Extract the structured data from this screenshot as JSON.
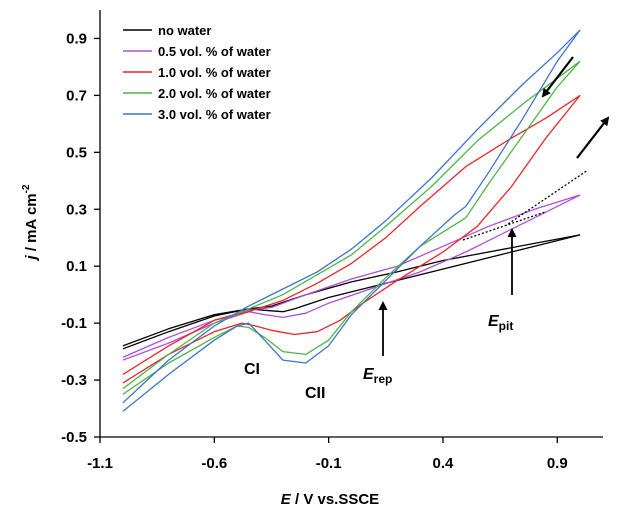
{
  "chart_data": {
    "type": "line",
    "xlabel_symbol": "E",
    "xlabel_rest": " / V vs.SSCE",
    "ylabel_symbol": "j",
    "ylabel_rest": " / mA cm",
    "ylabel_sup": "-2",
    "xlim": [
      -1.1,
      1.1
    ],
    "ylim": [
      -0.5,
      1.0
    ],
    "xticks": [
      "-1.1",
      "-0.6",
      "-0.1",
      "0.4",
      "0.9"
    ],
    "yticks": [
      "-0.5",
      "-0.3",
      "-0.1",
      "0.1",
      "0.3",
      "0.5",
      "0.7",
      "0.9"
    ],
    "grid": false,
    "legend_position": "top-left",
    "series": [
      {
        "name": "no water",
        "color": "#000000",
        "forward": {
          "x": [
            -1.0,
            -0.8,
            -0.6,
            -0.45,
            -0.38,
            -0.3,
            -0.25,
            -0.1,
            0.1,
            0.3,
            0.5,
            0.7,
            0.9,
            1.0
          ],
          "y": [
            -0.19,
            -0.13,
            -0.075,
            -0.05,
            -0.055,
            -0.06,
            -0.05,
            -0.01,
            0.03,
            0.07,
            0.11,
            0.15,
            0.19,
            0.21
          ]
        },
        "reverse": {
          "x": [
            1.0,
            0.8,
            0.6,
            0.4,
            0.2,
            0.0,
            -0.2,
            -0.35,
            -0.45,
            -0.6,
            -0.8,
            -1.0
          ],
          "y": [
            0.21,
            0.18,
            0.15,
            0.12,
            0.08,
            0.045,
            0.0,
            -0.04,
            -0.05,
            -0.07,
            -0.12,
            -0.18
          ]
        }
      },
      {
        "name": "0.5 vol. % of water",
        "color": "#b14fd6",
        "forward": {
          "x": [
            -1.0,
            -0.8,
            -0.6,
            -0.45,
            -0.38,
            -0.3,
            -0.2,
            -0.1,
            0.1,
            0.3,
            0.5,
            0.7,
            0.9,
            1.0
          ],
          "y": [
            -0.23,
            -0.17,
            -0.1,
            -0.06,
            -0.07,
            -0.08,
            -0.065,
            -0.03,
            0.025,
            0.08,
            0.15,
            0.23,
            0.31,
            0.35
          ]
        },
        "reverse": {
          "x": [
            1.0,
            0.8,
            0.6,
            0.4,
            0.2,
            0.0,
            -0.2,
            -0.35,
            -0.45,
            -0.6,
            -0.8,
            -1.0
          ],
          "y": [
            0.35,
            0.3,
            0.24,
            0.17,
            0.1,
            0.055,
            0.0,
            -0.045,
            -0.055,
            -0.09,
            -0.15,
            -0.22
          ]
        }
      },
      {
        "name": "1.0 vol. % of water",
        "color": "#e8262a",
        "forward": {
          "x": [
            -1.0,
            -0.8,
            -0.6,
            -0.48,
            -0.42,
            -0.35,
            -0.25,
            -0.15,
            -0.05,
            0.05,
            0.2,
            0.4,
            0.55,
            0.7,
            0.85,
            1.0
          ],
          "y": [
            -0.31,
            -0.21,
            -0.13,
            -0.1,
            -0.11,
            -0.125,
            -0.14,
            -0.13,
            -0.09,
            -0.03,
            0.05,
            0.15,
            0.24,
            0.38,
            0.55,
            0.7
          ]
        },
        "reverse": {
          "x": [
            1.0,
            0.85,
            0.7,
            0.5,
            0.3,
            0.15,
            0.0,
            -0.15,
            -0.3,
            -0.45,
            -0.6,
            -0.8,
            -1.0
          ],
          "y": [
            0.7,
            0.62,
            0.55,
            0.45,
            0.31,
            0.2,
            0.11,
            0.04,
            -0.02,
            -0.06,
            -0.09,
            -0.18,
            -0.28
          ]
        }
      },
      {
        "name": "2.0 vol. % of water",
        "color": "#4db548",
        "forward": {
          "x": [
            -1.0,
            -0.8,
            -0.6,
            -0.5,
            -0.45,
            -0.38,
            -0.3,
            -0.2,
            -0.1,
            0.0,
            0.15,
            0.3,
            0.5,
            0.6,
            0.75,
            0.9,
            1.0
          ],
          "y": [
            -0.35,
            -0.24,
            -0.15,
            -0.11,
            -0.115,
            -0.15,
            -0.2,
            -0.21,
            -0.16,
            -0.06,
            0.06,
            0.17,
            0.27,
            0.39,
            0.56,
            0.73,
            0.82
          ]
        },
        "reverse": {
          "x": [
            1.0,
            0.9,
            0.75,
            0.55,
            0.35,
            0.15,
            0.0,
            -0.15,
            -0.3,
            -0.45,
            -0.6,
            -0.8,
            -1.0
          ],
          "y": [
            0.82,
            0.76,
            0.67,
            0.54,
            0.38,
            0.24,
            0.14,
            0.07,
            0.0,
            -0.05,
            -0.1,
            -0.21,
            -0.33
          ]
        }
      },
      {
        "name": "3.0 vol. % of water",
        "color": "#3c74c8",
        "forward": {
          "x": [
            -1.0,
            -0.8,
            -0.6,
            -0.5,
            -0.45,
            -0.38,
            -0.3,
            -0.2,
            -0.1,
            0.0,
            0.15,
            0.3,
            0.45,
            0.5,
            0.6,
            0.75,
            0.9,
            1.0
          ],
          "y": [
            -0.41,
            -0.28,
            -0.16,
            -0.11,
            -0.1,
            -0.16,
            -0.23,
            -0.24,
            -0.18,
            -0.07,
            0.05,
            0.17,
            0.28,
            0.31,
            0.43,
            0.62,
            0.82,
            0.93
          ]
        },
        "reverse": {
          "x": [
            1.0,
            0.9,
            0.75,
            0.55,
            0.35,
            0.15,
            0.0,
            -0.15,
            -0.3,
            -0.45,
            -0.6,
            -0.8,
            -1.0
          ],
          "y": [
            0.93,
            0.85,
            0.74,
            0.58,
            0.41,
            0.26,
            0.16,
            0.08,
            0.02,
            -0.04,
            -0.11,
            -0.23,
            -0.38
          ]
        }
      }
    ],
    "annotations": [
      {
        "label": "CI",
        "x": -0.5,
        "y": -0.25
      },
      {
        "label": "CII",
        "x": -0.25,
        "y": -0.38
      },
      {
        "label_symbol": "E",
        "label_sub": "rep",
        "x": 0.0,
        "y": -0.29
      },
      {
        "label_symbol": "E",
        "label_sub": "pit",
        "x": 0.6,
        "y": -0.1
      }
    ]
  }
}
